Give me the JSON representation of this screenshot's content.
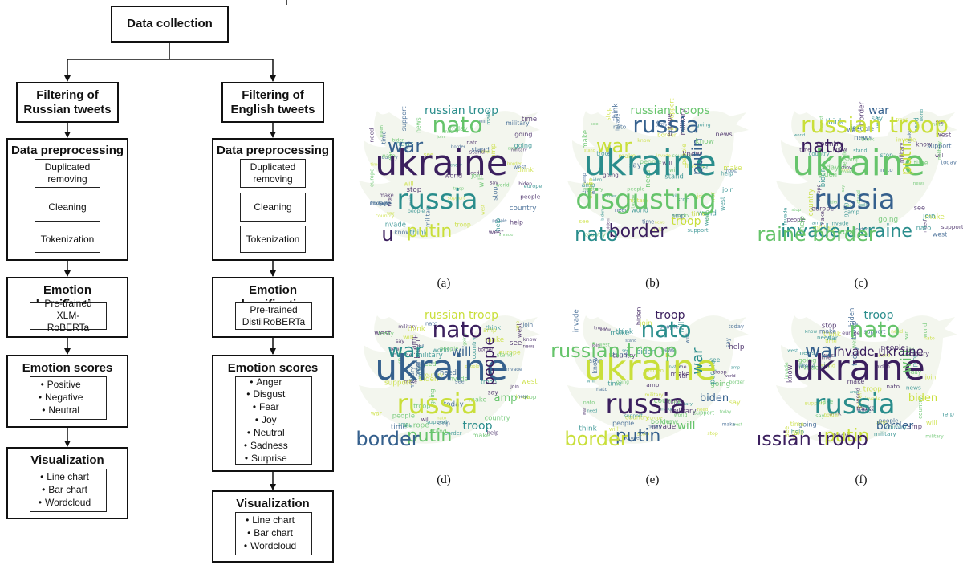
{
  "diagram": {
    "top": {
      "title": "Data collection"
    },
    "russian": {
      "filter_title": "Filtering of Russian tweets",
      "pre_title": "Data preprocessing",
      "pre_steps": [
        "Duplicated removing",
        "Cleaning",
        "Tokenization"
      ],
      "emo_title": "Emotion classification",
      "model": "Pre-trained XLM-RoBERTa",
      "scores_title": "Emotion scores",
      "scores": [
        "Positive",
        "Negative",
        "Neutral"
      ],
      "vis_title": "Visualization",
      "vis_items": [
        "Line chart",
        "Bar chart",
        "Wordcloud"
      ]
    },
    "english": {
      "filter_title": "Filtering of English tweets",
      "pre_title": "Data preprocessing",
      "pre_steps": [
        "Duplicated removing",
        "Cleaning",
        "Tokenization"
      ],
      "emo_title": "Emotion classification",
      "model": "Pre-trained DistilRoBERTa",
      "scores_title": "Emotion scores",
      "scores": [
        "Anger",
        "Disgust",
        "Fear",
        "Joy",
        "Neutral",
        "Sadness",
        "Surprise"
      ],
      "vis_title": "Visualization",
      "vis_items": [
        "Line chart",
        "Bar chart",
        "Wordcloud"
      ]
    }
  },
  "wordclouds": [
    {
      "caption": "(a)",
      "words": [
        "ukraine",
        "russia",
        "nato",
        "war",
        "putin",
        "u",
        "russian troop"
      ]
    },
    {
      "caption": "(b)",
      "words": [
        "ukraine",
        "disgusting",
        "russia",
        "war",
        "border",
        "nato",
        "russian troops",
        "putin",
        "troop"
      ]
    },
    {
      "caption": "(c)",
      "words": [
        "ukraine",
        "russia",
        "russian troop",
        "nato",
        "invade ukraine",
        "ukraine border",
        "war",
        "putin"
      ]
    },
    {
      "caption": "(d)",
      "words": [
        "ukraine",
        "russia",
        "nato",
        "war",
        "putin",
        "border",
        "russian troop",
        "people",
        "troop",
        "amp",
        "will"
      ]
    },
    {
      "caption": "(e)",
      "words": [
        "ukraine",
        "russia",
        "nato",
        "russian troop",
        "putin",
        "border",
        "troop",
        "war",
        "will",
        "biden"
      ]
    },
    {
      "caption": "(f)",
      "words": [
        "ukraine",
        "russia",
        "nato",
        "war",
        "putin",
        "russian troop",
        "troop",
        "will",
        "border",
        "biden",
        "invade ukraine"
      ]
    }
  ],
  "colors": {
    "line": "#111111",
    "wc_dark": "#3b1f5e",
    "wc_teal": "#2a8d8c",
    "wc_green": "#66c46b",
    "wc_blue": "#35608d",
    "wc_yellow": "#c9df3a"
  }
}
